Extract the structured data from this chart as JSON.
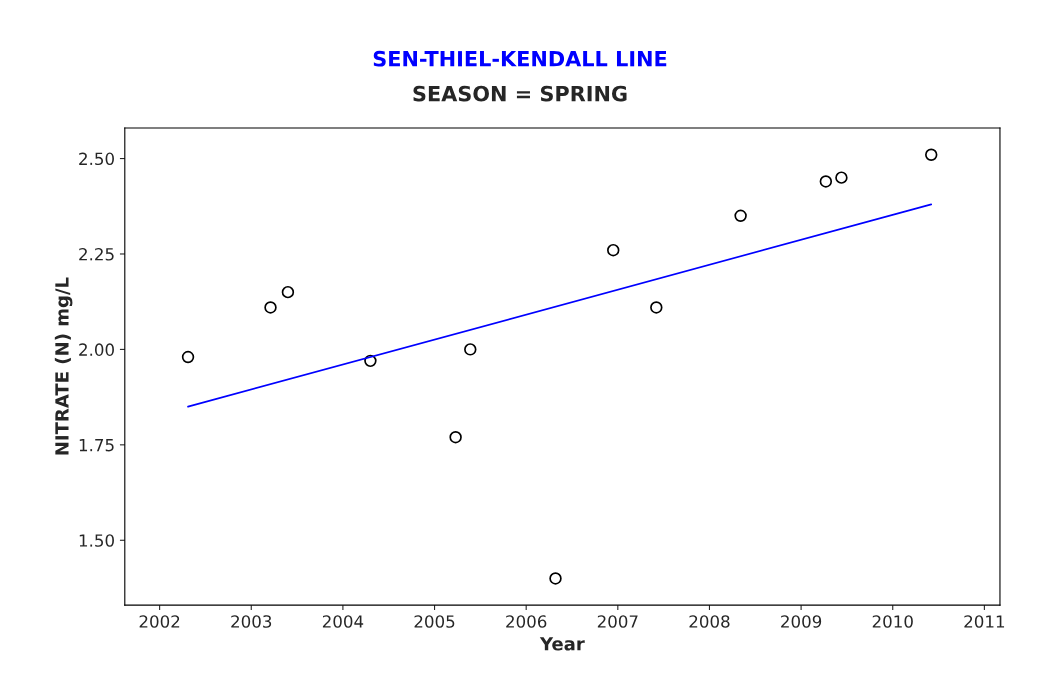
{
  "chart_data": {
    "type": "scatter",
    "title": "SEN-THIEL-KENDALL LINE",
    "subtitle": "SEASON = SPRING",
    "xlabel": "Year",
    "ylabel": "NITRATE (N) mg/L",
    "series": [
      {
        "color": "#000000",
        "marker": "circle",
        "x": [
          2002.31,
          2003.21,
          2003.4,
          2004.3,
          2005.23,
          2005.39,
          2006.32,
          2006.95,
          2007.42,
          2008.34,
          2009.27,
          2009.44,
          2010.42
        ],
        "values": [
          1.98,
          2.11,
          2.15,
          1.97,
          1.77,
          2.0,
          1.4,
          2.26,
          2.11,
          2.35,
          2.44,
          2.45,
          2.51
        ]
      },
      {
        "type": "line",
        "color": "#0000ff",
        "x": [
          2002.31,
          2010.42
        ],
        "values": [
          1.85,
          2.38
        ]
      }
    ],
    "xlim": [
      2001.62,
      2011.17
    ],
    "ylim": [
      1.33,
      2.58
    ],
    "xticks": [
      2002,
      2003,
      2004,
      2005,
      2006,
      2007,
      2008,
      2009,
      2010,
      2011
    ],
    "yticks": [
      {
        "value": 1.5,
        "label": "1.50"
      },
      {
        "value": 1.75,
        "label": "1.75"
      },
      {
        "value": 2.0,
        "label": "2.00"
      },
      {
        "value": 2.25,
        "label": "2.25"
      },
      {
        "value": 2.5,
        "label": "2.50"
      }
    ],
    "grid": false,
    "legend": false
  }
}
